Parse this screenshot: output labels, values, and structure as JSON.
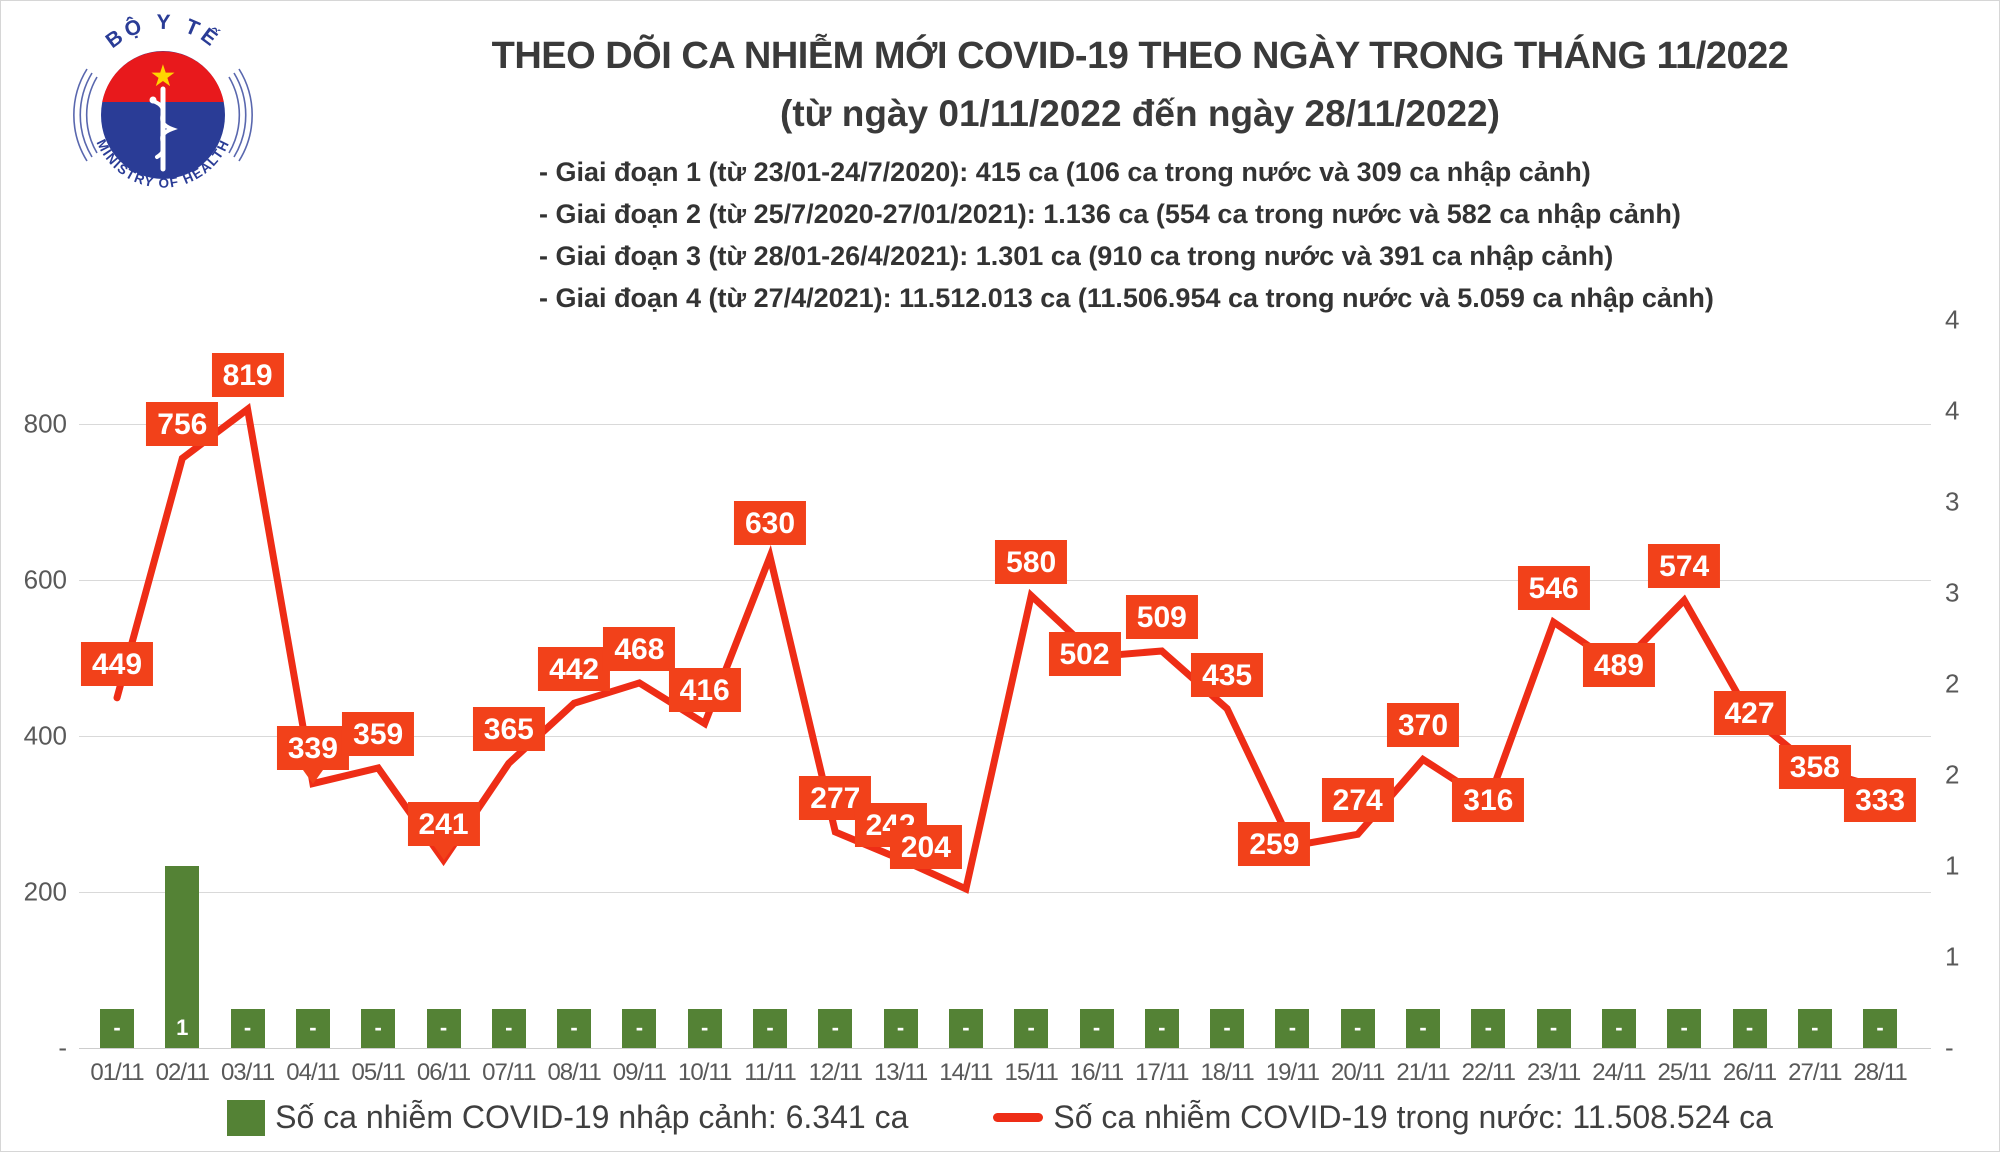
{
  "header": {
    "title_line1": "THEO DÕI CA NHIỄM MỚI COVID-19 THEO NGÀY TRONG THÁNG 11/2022",
    "title_line2": "(từ ngày 01/11/2022 đến ngày 28/11/2022)",
    "phases": [
      "- Giai đoạn 1 (từ 23/01-24/7/2020): 415 ca (106 ca trong nước và 309 ca nhập cảnh)",
      "- Giai đoạn 2 (từ 25/7/2020-27/01/2021): 1.136 ca (554 ca trong nước và 582 ca nhập cảnh)",
      "- Giai đoạn 3 (từ 28/01-26/4/2021): 1.301 ca (910 ca trong nước và 391 ca nhập cảnh)",
      "- Giai đoạn 4 (từ 27/4/2021): 11.512.013 ca (11.506.954 ca trong nước và 5.059 ca nhập cảnh)"
    ],
    "logo": {
      "top_text": "BỘ Y TẾ",
      "bottom_text": "MINISTRY OF HEALTH"
    }
  },
  "chart_data": {
    "type": "combo",
    "categories": [
      "01/11",
      "02/11",
      "03/11",
      "04/11",
      "05/11",
      "06/11",
      "07/11",
      "08/11",
      "09/11",
      "10/11",
      "11/11",
      "12/11",
      "13/11",
      "14/11",
      "15/11",
      "16/11",
      "17/11",
      "18/11",
      "19/11",
      "20/11",
      "21/11",
      "22/11",
      "23/11",
      "24/11",
      "25/11",
      "26/11",
      "27/11",
      "28/11"
    ],
    "series": [
      {
        "name": "Số ca nhiễm COVID-19 trong nước",
        "type": "line",
        "color": "#ee2d16",
        "values": [
          449,
          756,
          819,
          339,
          359,
          241,
          365,
          442,
          468,
          416,
          630,
          277,
          242,
          204,
          580,
          502,
          509,
          435,
          259,
          274,
          370,
          316,
          546,
          489,
          574,
          427,
          358,
          333
        ]
      },
      {
        "name": "Số ca nhiễm COVID-19 nhập cảnh",
        "type": "bar",
        "color": "#548235",
        "values": [
          0,
          1,
          0,
          0,
          0,
          0,
          0,
          0,
          0,
          0,
          0,
          0,
          0,
          0,
          0,
          0,
          0,
          0,
          0,
          0,
          0,
          0,
          0,
          0,
          0,
          0,
          0,
          0
        ],
        "labels": [
          "-",
          "1",
          "-",
          "-",
          "-",
          "-",
          "-",
          "-",
          "-",
          "-",
          "-",
          "-",
          "-",
          "-",
          "-",
          "-",
          "-",
          "-",
          "-",
          "-",
          "-",
          "-",
          "-",
          "-",
          "-",
          "-",
          "-",
          "-"
        ]
      }
    ],
    "left_axis": {
      "ticks": [
        "800",
        "600",
        "400",
        "200",
        "-"
      ],
      "values": [
        800,
        600,
        400,
        200,
        0
      ]
    },
    "right_axis": {
      "ticks_top_to_bottom": [
        "4",
        "4",
        "3",
        "3",
        "2",
        "2",
        "1",
        "1",
        "-"
      ]
    },
    "grid": true,
    "ylim": [
      0,
      900
    ],
    "legend_position": "bottom"
  },
  "legend": [
    {
      "swatch": "bar",
      "color": "#548235",
      "label": "Số ca nhiễm COVID-19 nhập cảnh: 6.341 ca"
    },
    {
      "swatch": "line",
      "color": "#ee2d16",
      "label": "Số ca nhiễm COVID-19 trong nước: 11.508.524 ca"
    }
  ]
}
